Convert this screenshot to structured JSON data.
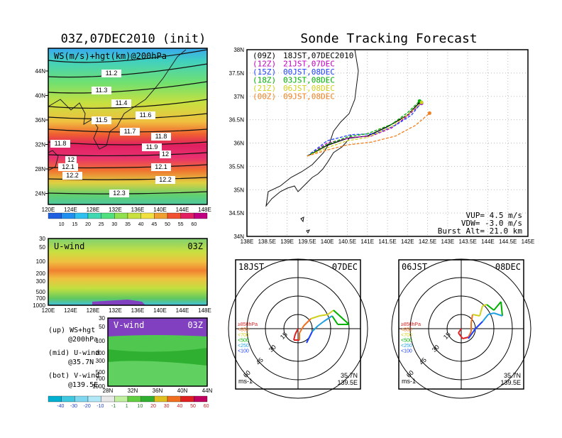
{
  "init_panel": {
    "title": "03Z,07DEC2010 (init)",
    "label": "WS(m/s)+hgt(km)@200hPa",
    "x_ticks": [
      "120E",
      "124E",
      "128E",
      "132E",
      "136E",
      "140E",
      "144E",
      "148E"
    ],
    "y_ticks": [
      "44N",
      "40N",
      "36N",
      "32N",
      "28N",
      "24N"
    ],
    "contours": [
      "11.2",
      "11.3",
      "11.4",
      "11.5",
      "11.6",
      "11.7",
      "11.8",
      "11.8",
      "11.9",
      "12",
      "12",
      "12.1",
      "12.1",
      "12.2",
      "12.2",
      "12.3"
    ],
    "colorbar_ticks": [
      "10",
      "15",
      "20",
      "25",
      "30",
      "35",
      "40",
      "45",
      "50",
      "55",
      "60"
    ]
  },
  "uwind_panel": {
    "label": "U-wind",
    "time": "03Z",
    "y_ticks": [
      "30",
      "50",
      "100",
      "200",
      "300",
      "500",
      "700",
      "1000"
    ],
    "x_ticks": [
      "120E",
      "124E",
      "128E",
      "132E",
      "136E",
      "140E",
      "144E",
      "148E"
    ]
  },
  "vwind_panel": {
    "label": "V-wind",
    "time": "03Z",
    "y_ticks": [
      "30",
      "50",
      "100",
      "200",
      "300",
      "500",
      "700",
      "1000"
    ],
    "x_ticks": [
      "28N",
      "32N",
      "36N",
      "40N",
      "44N"
    ],
    "colorbar_ticks": [
      "-40",
      "-30",
      "-20",
      "-10",
      "-1",
      "1",
      "10",
      "20",
      "30",
      "40",
      "50",
      "60"
    ]
  },
  "legend_notes": {
    "up": "(up) WS+hgt",
    "up2": "@200hPa",
    "mid": "(mid) U-wind",
    "mid2": "@35.7N",
    "bot": "(bot) V-wind",
    "bot2": "@139.5E"
  },
  "tracking": {
    "title": "Sonde Tracking Forecast",
    "x_ticks": [
      "138E",
      "138.5E",
      "139E",
      "139.5E",
      "140E",
      "140.5E",
      "141E",
      "141.5E",
      "142E",
      "142.5E",
      "143E",
      "143.5E",
      "144E",
      "144.5E",
      "145E"
    ],
    "y_ticks": [
      "38N",
      "37.5N",
      "37N",
      "36.5N",
      "36N",
      "35.5N",
      "35N",
      "34.5N",
      "34N"
    ],
    "vup": "VUP= 4.5 m/s",
    "vdw": "VDW= -3.0 m/s",
    "burst": "Burst Alt= 21.0 km",
    "legend": [
      {
        "z": "(09Z)",
        "jst": "18JST,07DEC2010",
        "color": "#000000"
      },
      {
        "z": "(12Z)",
        "jst": "21JST,07DEC",
        "color": "#c000c0"
      },
      {
        "z": "(15Z)",
        "jst": "00JST,08DEC",
        "color": "#2040ff"
      },
      {
        "z": "(18Z)",
        "jst": "03JST,08DEC",
        "color": "#00b000"
      },
      {
        "z": "(21Z)",
        "jst": "06JST,08DEC",
        "color": "#d0d020"
      },
      {
        "z": "(00Z)",
        "jst": "09JST,08DEC",
        "color": "#f08020"
      }
    ]
  },
  "hodo1": {
    "time_label": "18JST",
    "date_label": "07DEC",
    "ring_labels": [
      "15",
      "30",
      "45",
      "60"
    ],
    "unit": "ms-1",
    "lat": "35.7N",
    "lon": "139.5E",
    "levels": [
      "≥850hPa",
      "<850",
      "<700",
      "<500",
      "<250",
      "<100"
    ]
  },
  "hodo2": {
    "time_label": "06JST",
    "date_label": "08DEC",
    "ring_labels": [
      "15",
      "30",
      "45",
      "60"
    ],
    "unit": "ms-1",
    "lat": "35.7N",
    "lon": "139.5E",
    "levels": [
      "≥850hPa",
      "<850",
      "<700",
      "<500",
      "<250",
      "<100"
    ]
  },
  "chart_data": [
    {
      "type": "line",
      "title": "Sonde Tracking Forecast",
      "xlim": [
        138,
        145
      ],
      "ylim": [
        34,
        38
      ],
      "series": [
        {
          "name": "(09Z) 18JST,07DEC2010",
          "x": [
            139.5,
            140.0,
            140.5,
            141.0,
            141.5,
            142.0,
            142.3
          ],
          "y": [
            35.72,
            35.95,
            36.1,
            36.15,
            36.35,
            36.6,
            36.87
          ]
        },
        {
          "name": "(12Z) 21JST,07DEC",
          "x": [
            139.5,
            140.0,
            140.6,
            141.1,
            141.6,
            142.0,
            142.35
          ],
          "y": [
            35.72,
            36.0,
            36.12,
            36.15,
            36.32,
            36.58,
            36.85
          ]
        },
        {
          "name": "(15Z) 00JST,08DEC",
          "x": [
            139.5,
            140.0,
            140.6,
            141.2,
            141.7,
            142.1,
            142.35
          ],
          "y": [
            35.72,
            36.05,
            36.18,
            36.2,
            36.38,
            36.6,
            36.87
          ]
        },
        {
          "name": "(18Z) 03JST,08DEC",
          "x": [
            139.5,
            140.0,
            140.5,
            141.0,
            141.6,
            142.0,
            142.3
          ],
          "y": [
            35.72,
            35.97,
            36.13,
            36.2,
            36.4,
            36.65,
            36.9
          ]
        },
        {
          "name": "(21Z) 06JST,08DEC",
          "x": [
            139.5,
            140.0,
            140.5,
            141.0,
            141.6,
            142.0,
            142.35
          ],
          "y": [
            35.72,
            35.9,
            36.05,
            36.12,
            36.35,
            36.6,
            36.87
          ]
        },
        {
          "name": "(00Z) 09JST,08DEC",
          "x": [
            139.5,
            140.0,
            140.5,
            141.1,
            141.7,
            142.2,
            142.55
          ],
          "y": [
            35.72,
            35.85,
            35.96,
            36.02,
            36.15,
            36.38,
            36.64
          ]
        }
      ]
    }
  ],
  "colors": {
    "ws_scale": [
      "#2060e0",
      "#2090f0",
      "#30c0f0",
      "#40d8b0",
      "#50e080",
      "#90e050",
      "#c8e040",
      "#f0e040",
      "#f0a030",
      "#f05030",
      "#e02060",
      "#c00080"
    ],
    "v_scale": [
      "#00b0d0",
      "#40c8e0",
      "#80d8f0",
      "#b0e8f8",
      "#e8e8e8",
      "#c0f0a0",
      "#60d040",
      "#30b030",
      "#e0c020",
      "#f07020",
      "#e02020",
      "#c00060"
    ]
  }
}
